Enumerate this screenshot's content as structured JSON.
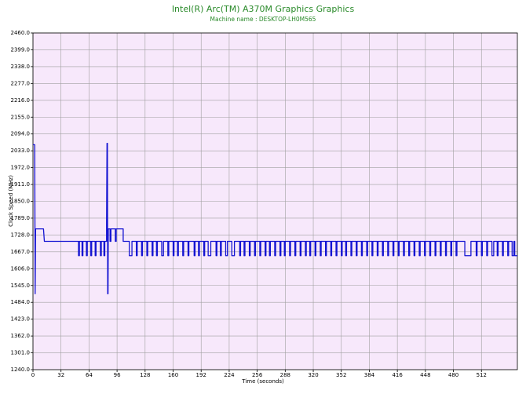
{
  "chart_data": {
    "type": "line",
    "title": "Intel(R) Arc(TM) A370M Graphics Graphics",
    "subtitle": "Machine name : DESKTOP-LH0M565",
    "x_label": "Time (seconds)",
    "y_label": "Clock Speed (MHz)",
    "xlim": [
      0,
      553
    ],
    "xticks": [
      0,
      32,
      64,
      96,
      128,
      160,
      192,
      224,
      256,
      288,
      320,
      352,
      384,
      416,
      448,
      480,
      512
    ],
    "ylim": [
      1240,
      2460
    ],
    "yticks": [
      {
        "value": 1240,
        "label": "1240.0"
      },
      {
        "value": 1301,
        "label": "1301.0"
      },
      {
        "value": 1362,
        "label": "1362.0"
      },
      {
        "value": 1423,
        "label": "1423.0"
      },
      {
        "value": 1484,
        "label": "1484.0"
      },
      {
        "value": 1545,
        "label": "1545.0"
      },
      {
        "value": 1606,
        "label": "1606.0"
      },
      {
        "value": 1667,
        "label": "1667.0"
      },
      {
        "value": 1728,
        "label": "1728.0"
      },
      {
        "value": 1789,
        "label": "1789.0"
      },
      {
        "value": 1850,
        "label": "1850.0"
      },
      {
        "value": 1911,
        "label": "1911.0"
      },
      {
        "value": 1972,
        "label": "1972.0"
      },
      {
        "value": 2033,
        "label": "2033.0"
      },
      {
        "value": 2094,
        "label": "2094.0"
      },
      {
        "value": 2155,
        "label": "2155.0"
      },
      {
        "value": 2216,
        "label": "2216.0"
      },
      {
        "value": 2277,
        "label": "2277.0"
      },
      {
        "value": 2338,
        "label": "2338.0"
      },
      {
        "value": 2399,
        "label": "2399.0"
      },
      {
        "value": 2460,
        "label": "2460.0"
      }
    ],
    "grid": true,
    "background": "#f7e8fb",
    "x": [
      0,
      2,
      2.5,
      3,
      12,
      13,
      52,
      52,
      53,
      53,
      56,
      56,
      57,
      57,
      61,
      61,
      62,
      62,
      66,
      66,
      67,
      67,
      71,
      71,
      72,
      72,
      77,
      77,
      78,
      78,
      81,
      81,
      82,
      82,
      84,
      84,
      84.5,
      85,
      85.3,
      85.7,
      86,
      88,
      88,
      89,
      89,
      94,
      94,
      95,
      95,
      103,
      103,
      110,
      110,
      113,
      113,
      118,
      118,
      119,
      119,
      124,
      124,
      125,
      125,
      130,
      130,
      131,
      131,
      136,
      136,
      137,
      137,
      141,
      141,
      142,
      142,
      147,
      147,
      149,
      149,
      154,
      154,
      155,
      155,
      160,
      160,
      161,
      161,
      165,
      165,
      166,
      166,
      171,
      171,
      172,
      172,
      177,
      177,
      178,
      178,
      184,
      184,
      185,
      185,
      189,
      189,
      190,
      190,
      195,
      195,
      196,
      196,
      200,
      200,
      203,
      203,
      209,
      209,
      210,
      210,
      214,
      214,
      215,
      215,
      220,
      220,
      222,
      222,
      227,
      227,
      230,
      230,
      236,
      236,
      237,
      237,
      241,
      241,
      242,
      242,
      247,
      247,
      248,
      248,
      253,
      253,
      254,
      254,
      259,
      259,
      260,
      260,
      265,
      265,
      266,
      266,
      270,
      270,
      271,
      271,
      276,
      276,
      277,
      277,
      282,
      282,
      283,
      283,
      287,
      287,
      288,
      288,
      293,
      293,
      294,
      294,
      299,
      299,
      300,
      300,
      305,
      305,
      306,
      306,
      311,
      311,
      312,
      312,
      316,
      316,
      317,
      317,
      322,
      322,
      323,
      323,
      328,
      328,
      329,
      329,
      334,
      334,
      335,
      335,
      340,
      340,
      341,
      341,
      346,
      346,
      347,
      347,
      352,
      352,
      353,
      353,
      357,
      357,
      358,
      358,
      363,
      363,
      364,
      364,
      369,
      369,
      370,
      370,
      375,
      375,
      376,
      376,
      381,
      381,
      382,
      382,
      387,
      387,
      388,
      388,
      393,
      393,
      394,
      394,
      399,
      399,
      400,
      400,
      405,
      405,
      406,
      406,
      411,
      411,
      412,
      412,
      417,
      417,
      418,
      418,
      423,
      423,
      424,
      424,
      429,
      429,
      430,
      430,
      435,
      435,
      436,
      436,
      441,
      441,
      442,
      442,
      447,
      447,
      448,
      448,
      453,
      453,
      454,
      454,
      459,
      459,
      460,
      460,
      465,
      465,
      466,
      466,
      471,
      471,
      472,
      472,
      477,
      477,
      478,
      478,
      483,
      483,
      484,
      484,
      493,
      493,
      500,
      500,
      506,
      506,
      507,
      507,
      512,
      512,
      513,
      513,
      518,
      518,
      519,
      519,
      524,
      524,
      526,
      526,
      530,
      530,
      531,
      531,
      536,
      536,
      537,
      537,
      542,
      542,
      543,
      543,
      547,
      547,
      549,
      549,
      550,
      550,
      553
    ],
    "series": [
      {
        "name": "Clock Speed",
        "color": "#1414d2",
        "values": [
          2055,
          2055,
          1515,
          1750,
          1750,
          1705,
          1705,
          1653,
          1653,
          1705,
          1705,
          1653,
          1653,
          1705,
          1705,
          1653,
          1653,
          1705,
          1705,
          1653,
          1653,
          1705,
          1705,
          1653,
          1653,
          1705,
          1705,
          1653,
          1653,
          1705,
          1705,
          1653,
          1653,
          1705,
          1705,
          1760,
          2060,
          2060,
          1515,
          1515,
          1750,
          1750,
          1705,
          1705,
          1750,
          1750,
          1705,
          1705,
          1750,
          1750,
          1705,
          1705,
          1653,
          1653,
          1705,
          1705,
          1653,
          1653,
          1705,
          1705,
          1653,
          1653,
          1705,
          1705,
          1653,
          1653,
          1705,
          1705,
          1653,
          1653,
          1705,
          1705,
          1653,
          1653,
          1705,
          1705,
          1653,
          1653,
          1705,
          1705,
          1653,
          1653,
          1705,
          1705,
          1653,
          1653,
          1705,
          1705,
          1653,
          1653,
          1705,
          1705,
          1653,
          1653,
          1705,
          1705,
          1653,
          1653,
          1705,
          1705,
          1653,
          1653,
          1705,
          1705,
          1653,
          1653,
          1705,
          1705,
          1653,
          1653,
          1705,
          1705,
          1653,
          1653,
          1705,
          1705,
          1653,
          1653,
          1705,
          1705,
          1653,
          1653,
          1705,
          1705,
          1653,
          1653,
          1705,
          1705,
          1653,
          1653,
          1705,
          1705,
          1653,
          1653,
          1705,
          1705,
          1653,
          1653,
          1705,
          1705,
          1653,
          1653,
          1705,
          1705,
          1653,
          1653,
          1705,
          1705,
          1653,
          1653,
          1705,
          1705,
          1653,
          1653,
          1705,
          1705,
          1653,
          1653,
          1705,
          1705,
          1653,
          1653,
          1705,
          1705,
          1653,
          1653,
          1705,
          1705,
          1653,
          1653,
          1705,
          1705,
          1653,
          1653,
          1705,
          1705,
          1653,
          1653,
          1705,
          1705,
          1653,
          1653,
          1705,
          1705,
          1653,
          1653,
          1705,
          1705,
          1653,
          1653,
          1705,
          1705,
          1653,
          1653,
          1705,
          1705,
          1653,
          1653,
          1705,
          1705,
          1653,
          1653,
          1705,
          1705,
          1653,
          1653,
          1705,
          1705,
          1653,
          1653,
          1705,
          1705,
          1653,
          1653,
          1705,
          1705,
          1653,
          1653,
          1705,
          1705,
          1653,
          1653,
          1705,
          1705,
          1653,
          1653,
          1705,
          1705,
          1653,
          1653,
          1705,
          1705,
          1653,
          1653,
          1705,
          1705,
          1653,
          1653,
          1705,
          1705,
          1653,
          1653,
          1705,
          1705,
          1653,
          1653,
          1705,
          1705,
          1653,
          1653,
          1705,
          1705,
          1653,
          1653,
          1705,
          1705,
          1653,
          1653,
          1705,
          1705,
          1653,
          1653,
          1705,
          1705,
          1653,
          1653,
          1705,
          1705,
          1653,
          1653,
          1705,
          1705,
          1653,
          1653,
          1705,
          1705,
          1653,
          1653,
          1705,
          1705,
          1653,
          1653,
          1705,
          1705,
          1653,
          1653,
          1705,
          1705,
          1653,
          1653,
          1705,
          1705,
          1653,
          1653,
          1705,
          1705,
          1653,
          1653,
          1705,
          1705,
          1653,
          1653,
          1705,
          1705,
          1653,
          1653,
          1705,
          1705,
          1653,
          1653,
          1705,
          1705,
          1653,
          1653,
          1705,
          1705,
          1653,
          1653,
          1705,
          1705,
          1653,
          1653,
          1705,
          1705,
          1653,
          1653,
          1705,
          1705,
          1653,
          1653,
          1705,
          1705,
          1653,
          1653,
          1705,
          1705,
          1653,
          1653,
          1705,
          1705,
          1653,
          1653
        ]
      }
    ]
  }
}
